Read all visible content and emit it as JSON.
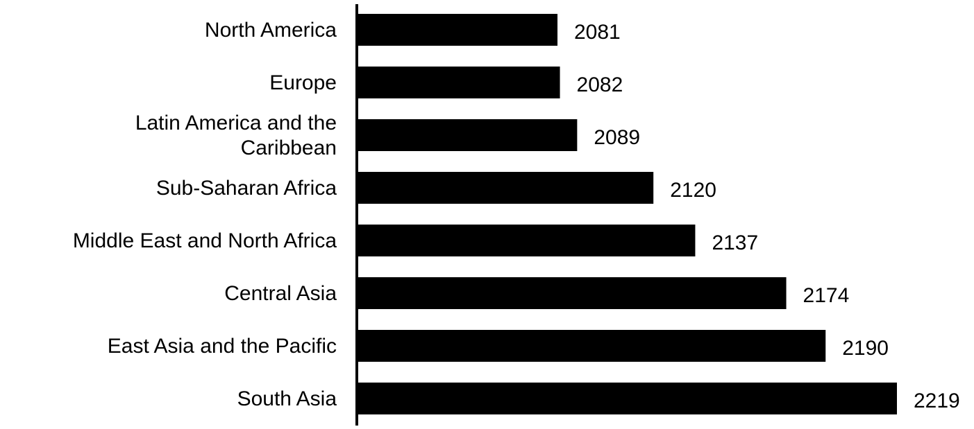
{
  "chart_data": {
    "type": "bar",
    "orientation": "horizontal",
    "categories": [
      "North America",
      "Europe",
      "Latin America and the Caribbean",
      "Sub-Saharan Africa",
      "Middle East and North Africa",
      "Central Asia",
      "East Asia and the Pacific",
      "South Asia"
    ],
    "values": [
      2081,
      2082,
      2089,
      2120,
      2137,
      2174,
      2190,
      2219
    ],
    "data_labels": [
      "2081",
      "2082",
      "2089",
      "2120",
      "2137",
      "2174",
      "2190",
      "2219"
    ],
    "xlim": [
      2000,
      2219
    ],
    "grid": false,
    "legend": "none",
    "bar_color": "#000000",
    "title": "",
    "xlabel": "",
    "ylabel": ""
  }
}
